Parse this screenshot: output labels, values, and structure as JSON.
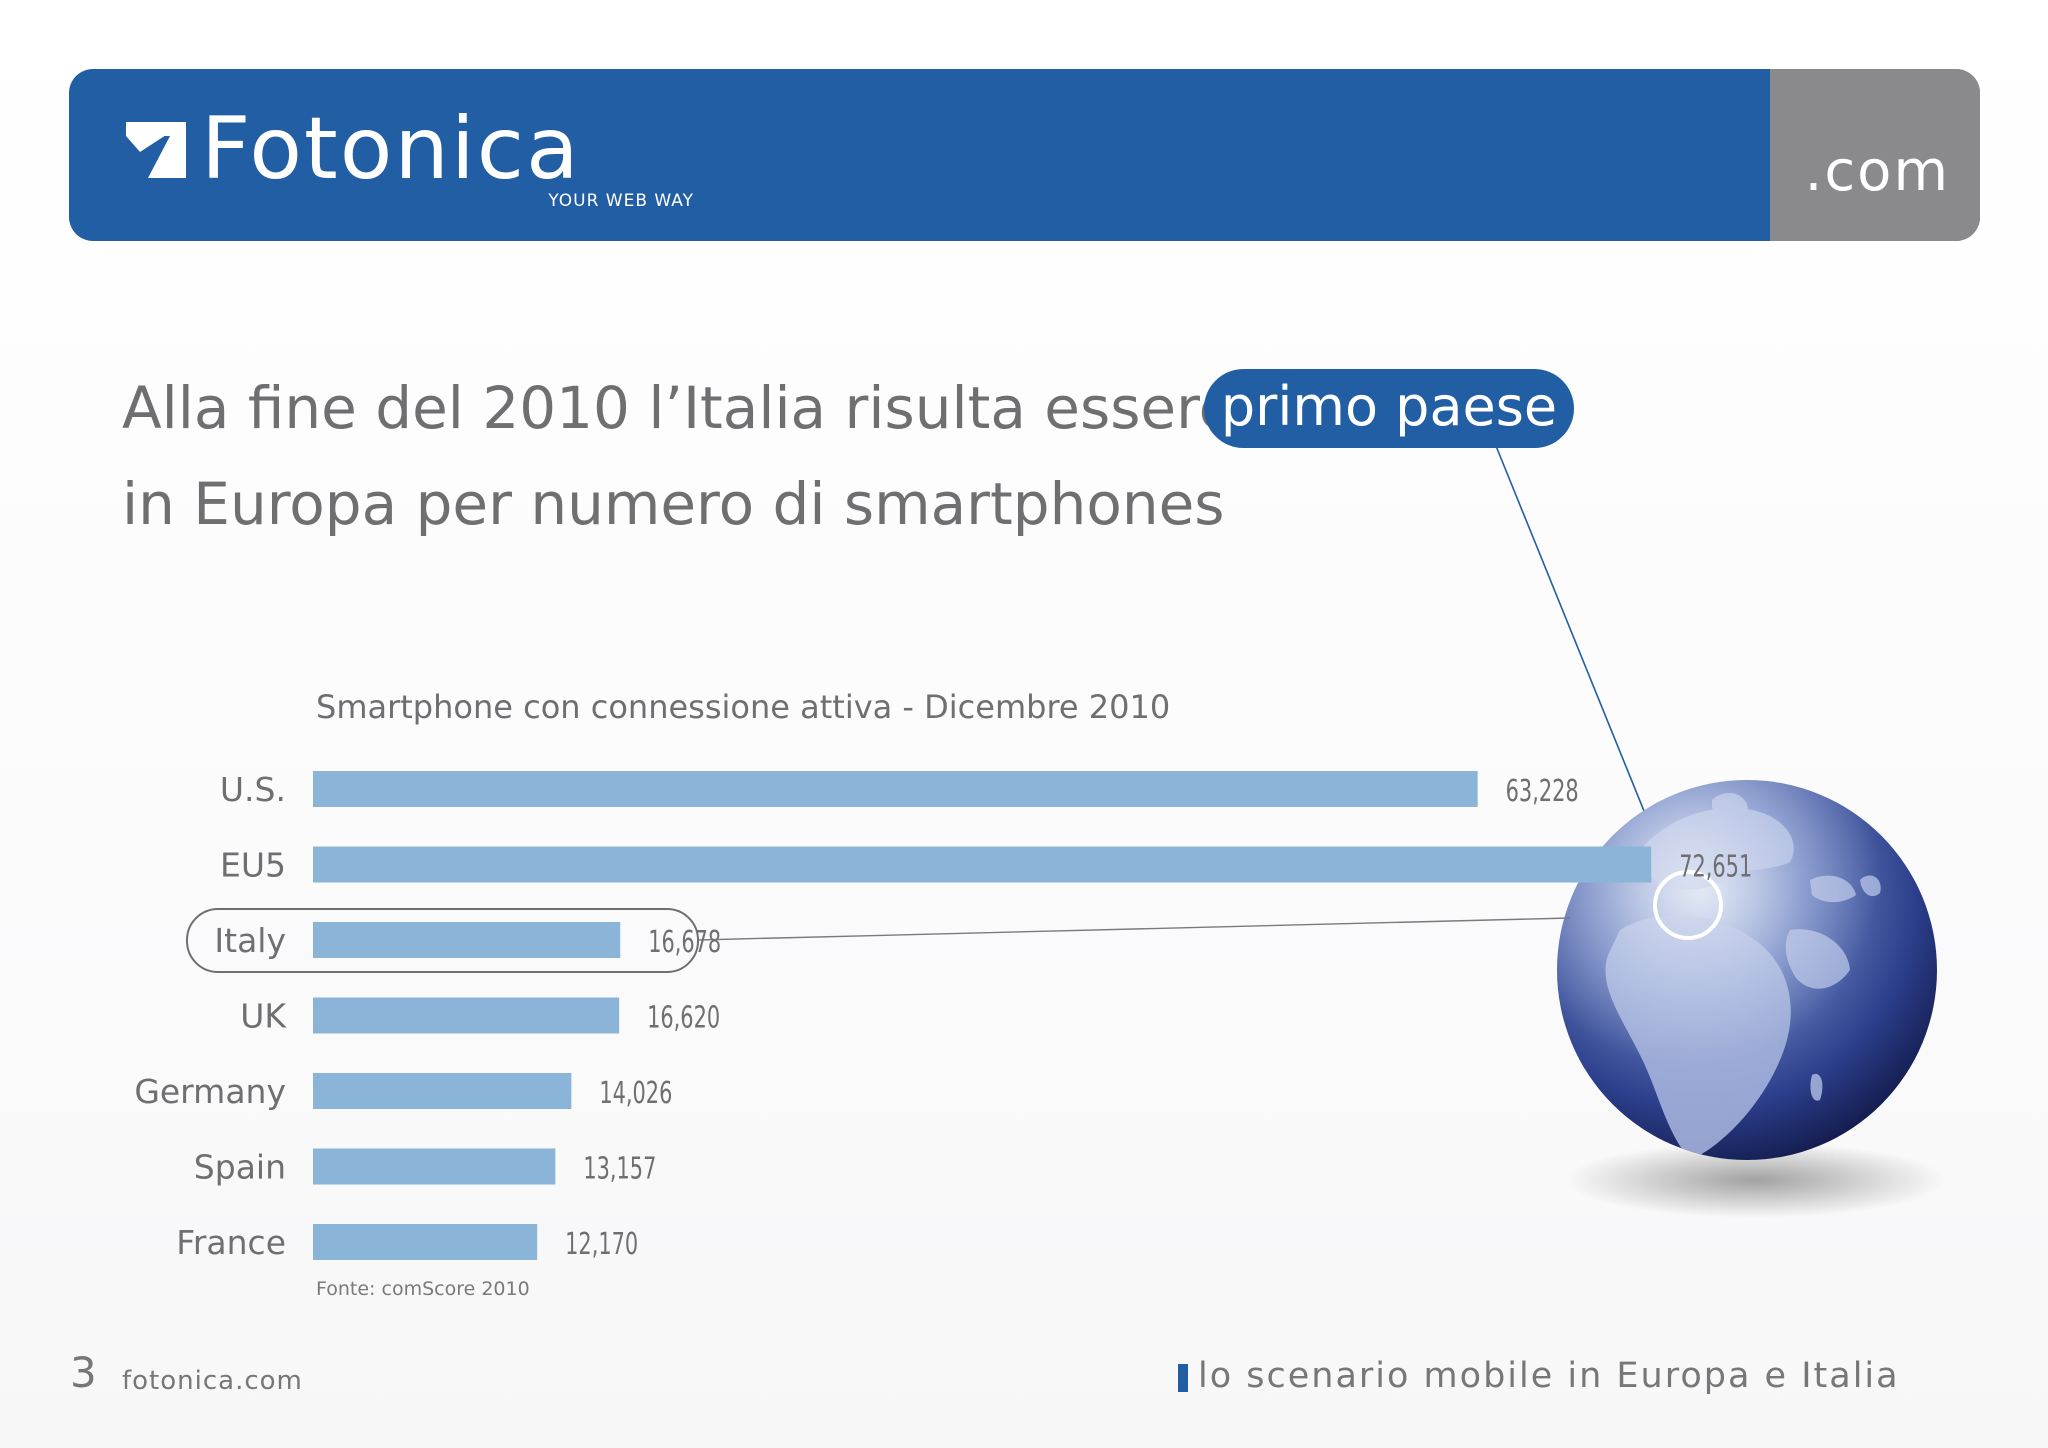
{
  "header": {
    "logo_text": "Fotonica",
    "tagline": "YOUR WEB WAY",
    "domain_suffix": ".com"
  },
  "headline": {
    "line1": "Alla fine del 2010 l’Italia risulta essere il",
    "highlight": "primo paese",
    "line2": "in Europa per numero di smartphones"
  },
  "colors": {
    "brand_blue": "#215ea3",
    "bar_blue": "#8ab4d8",
    "gray_panel": "#8a8a8c",
    "text_gray": "#6f6f72"
  },
  "chart_data": {
    "type": "bar",
    "orientation": "horizontal",
    "title": "Smartphone con connessione attiva - Dicembre 2010",
    "categories": [
      "U.S.",
      "EU5",
      "Italy",
      "UK",
      "Germany",
      "Spain",
      "France"
    ],
    "values": [
      63228,
      72651,
      16678,
      16620,
      14026,
      13157,
      12170
    ],
    "value_labels": [
      "63,228",
      "72,651",
      "16,678",
      "16,620",
      "14,026",
      "13,157",
      "12,170"
    ],
    "highlighted_category": "Italy",
    "source": "Fonte: comScore 2010",
    "grid": false,
    "legend": "none"
  },
  "globe": {
    "icon": "globe-icon",
    "highlighted_region": "Italy"
  },
  "footer": {
    "page_number": "3",
    "site": "fotonica.com",
    "section_title": "lo scenario mobile in Europa e Italia"
  }
}
